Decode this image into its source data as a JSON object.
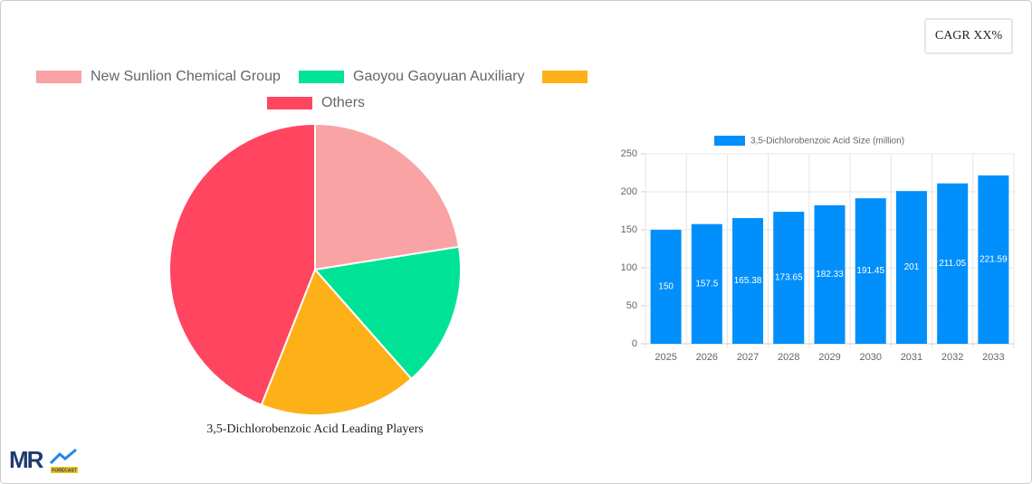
{
  "cagr_label": "CAGR XX%",
  "logo": {
    "mark": "MR",
    "sub": "FORECAST"
  },
  "chart_data": [
    {
      "type": "pie",
      "title": "3,5-Dichlorobenzoic Acid Leading Players",
      "categories": [
        "New Sunlion Chemical Group",
        "Gaoyou Gaoyuan Auxiliary",
        null,
        "Others"
      ],
      "values": [
        22.5,
        16,
        17.5,
        44
      ],
      "colors": [
        "#f9a3a4",
        "#00e396",
        "#feb019",
        "#ff4560"
      ]
    },
    {
      "type": "bar",
      "categories": [
        "2025",
        "2026",
        "2027",
        "2028",
        "2029",
        "2030",
        "2031",
        "2032",
        "2033"
      ],
      "series": [
        {
          "name": "3,5-Dichlorobenzoic Acid Size (million)",
          "color": "#008ffb",
          "values": [
            150,
            157.5,
            165.38,
            173.65,
            182.33,
            191.45,
            201,
            211.05,
            221.59
          ]
        }
      ],
      "ylim": [
        0,
        250
      ],
      "yticks": [
        0,
        50,
        100,
        150,
        200,
        250
      ],
      "grid": true
    }
  ]
}
